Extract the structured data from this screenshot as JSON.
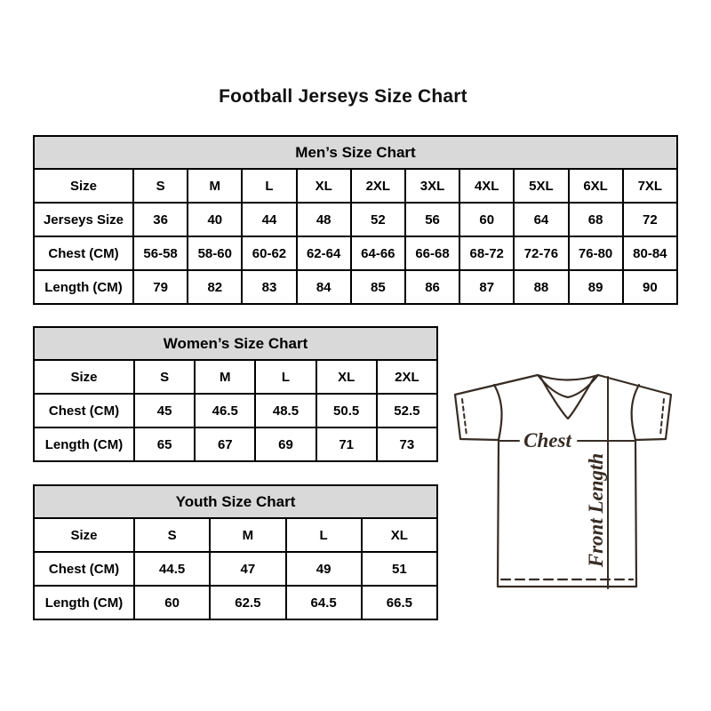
{
  "page": {
    "title": "Football Jerseys Size Chart"
  },
  "tables": {
    "men": {
      "title": "Men’s Size Chart",
      "rows": [
        {
          "label": "Size",
          "values": [
            "S",
            "M",
            "L",
            "XL",
            "2XL",
            "3XL",
            "4XL",
            "5XL",
            "6XL",
            "7XL"
          ]
        },
        {
          "label": "Jerseys Size",
          "values": [
            "36",
            "40",
            "44",
            "48",
            "52",
            "56",
            "60",
            "64",
            "68",
            "72"
          ]
        },
        {
          "label": "Chest (CM)",
          "values": [
            "56-58",
            "58-60",
            "60-62",
            "62-64",
            "64-66",
            "66-68",
            "68-72",
            "72-76",
            "76-80",
            "80-84"
          ]
        },
        {
          "label": "Length (CM)",
          "values": [
            "79",
            "82",
            "83",
            "84",
            "85",
            "86",
            "87",
            "88",
            "89",
            "90"
          ]
        }
      ]
    },
    "women": {
      "title": "Women’s Size Chart",
      "rows": [
        {
          "label": "Size",
          "values": [
            "S",
            "M",
            "L",
            "XL",
            "2XL"
          ]
        },
        {
          "label": "Chest (CM)",
          "values": [
            "45",
            "46.5",
            "48.5",
            "50.5",
            "52.5"
          ]
        },
        {
          "label": "Length (CM)",
          "values": [
            "65",
            "67",
            "69",
            "71",
            "73"
          ]
        }
      ]
    },
    "youth": {
      "title": "Youth Size Chart",
      "rows": [
        {
          "label": "Size",
          "values": [
            "S",
            "M",
            "L",
            "XL"
          ]
        },
        {
          "label": "Chest (CM)",
          "values": [
            "44.5",
            "47",
            "49",
            "51"
          ]
        },
        {
          "label": "Length (CM)",
          "values": [
            "60",
            "62.5",
            "64.5",
            "66.5"
          ]
        }
      ]
    }
  },
  "diagram": {
    "chest_label": "Chest",
    "front_length_label": "Front Length",
    "stroke_color": "#372c24"
  },
  "colors": {
    "header_bg": "#d9d9d9",
    "table_border": "#000000",
    "title_text": "#111111"
  }
}
